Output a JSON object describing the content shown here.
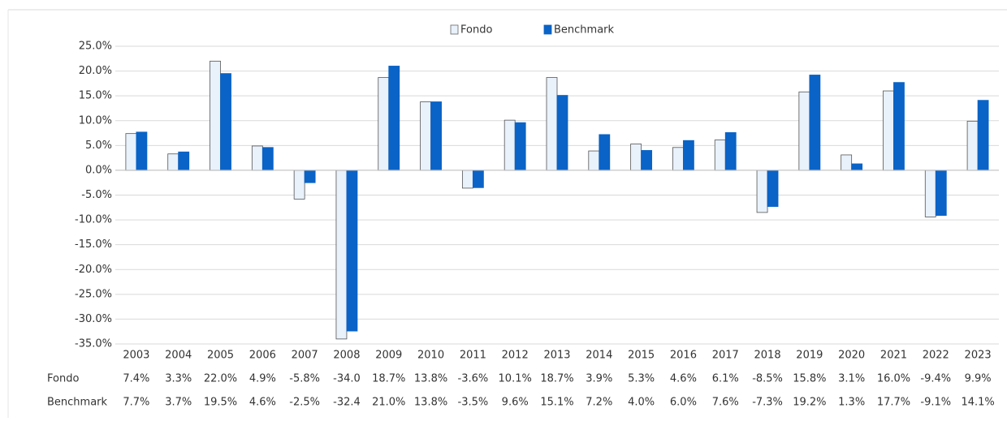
{
  "chart_data": {
    "type": "bar",
    "categories": [
      "2003",
      "2004",
      "2005",
      "2006",
      "2007",
      "2008",
      "2009",
      "2010",
      "2011",
      "2012",
      "2013",
      "2014",
      "2015",
      "2016",
      "2017",
      "2018",
      "2019",
      "2020",
      "2021",
      "2022",
      "2023"
    ],
    "series": [
      {
        "name": "Fondo",
        "color": "#e9f1fb",
        "values": [
          7.4,
          3.3,
          22.0,
          4.9,
          -5.8,
          -34.0,
          18.7,
          13.8,
          -3.6,
          10.1,
          18.7,
          3.9,
          5.3,
          4.6,
          6.1,
          -8.5,
          15.8,
          3.1,
          16.0,
          -9.4,
          9.9
        ],
        "value_labels": [
          "7.4%",
          "3.3%",
          "22.0%",
          "4.9%",
          "-5.8%",
          "-34.0",
          "18.7%",
          "13.8%",
          "-3.6%",
          "10.1%",
          "18.7%",
          "3.9%",
          "5.3%",
          "4.6%",
          "6.1%",
          "-8.5%",
          "15.8%",
          "3.1%",
          "16.0%",
          "-9.4%",
          "9.9%"
        ]
      },
      {
        "name": "Benchmark",
        "color": "#0a63c6",
        "values": [
          7.7,
          3.7,
          19.5,
          4.6,
          -2.5,
          -32.4,
          21.0,
          13.8,
          -3.5,
          9.6,
          15.1,
          7.2,
          4.0,
          6.0,
          7.6,
          -7.3,
          19.2,
          1.3,
          17.7,
          -9.1,
          14.1
        ],
        "value_labels": [
          "7.7%",
          "3.7%",
          "19.5%",
          "4.6%",
          "-2.5%",
          "-32.4",
          "21.0%",
          "13.8%",
          "-3.5%",
          "9.6%",
          "15.1%",
          "7.2%",
          "4.0%",
          "6.0%",
          "7.6%",
          "-7.3%",
          "19.2%",
          "1.3%",
          "17.7%",
          "-9.1%",
          "14.1%"
        ]
      }
    ],
    "ylim": [
      -35,
      25
    ],
    "yticks": [
      {
        "value": 25,
        "label": "25.0%"
      },
      {
        "value": 20,
        "label": "20.0%"
      },
      {
        "value": 15,
        "label": "15.0%"
      },
      {
        "value": 10,
        "label": "10.0%"
      },
      {
        "value": 5,
        "label": "5.0%"
      },
      {
        "value": 0,
        "label": "0.0%"
      },
      {
        "value": -5,
        "label": "-5.0%"
      },
      {
        "value": -10,
        "label": "-10.0%"
      },
      {
        "value": -15,
        "label": "-15.0%"
      },
      {
        "value": -20,
        "label": "-20.0%"
      },
      {
        "value": -25,
        "label": "-25.0%"
      },
      {
        "value": -30,
        "label": "-30.0%"
      },
      {
        "value": -35,
        "label": "-35.0%"
      }
    ],
    "grid": true,
    "legend": "top"
  }
}
